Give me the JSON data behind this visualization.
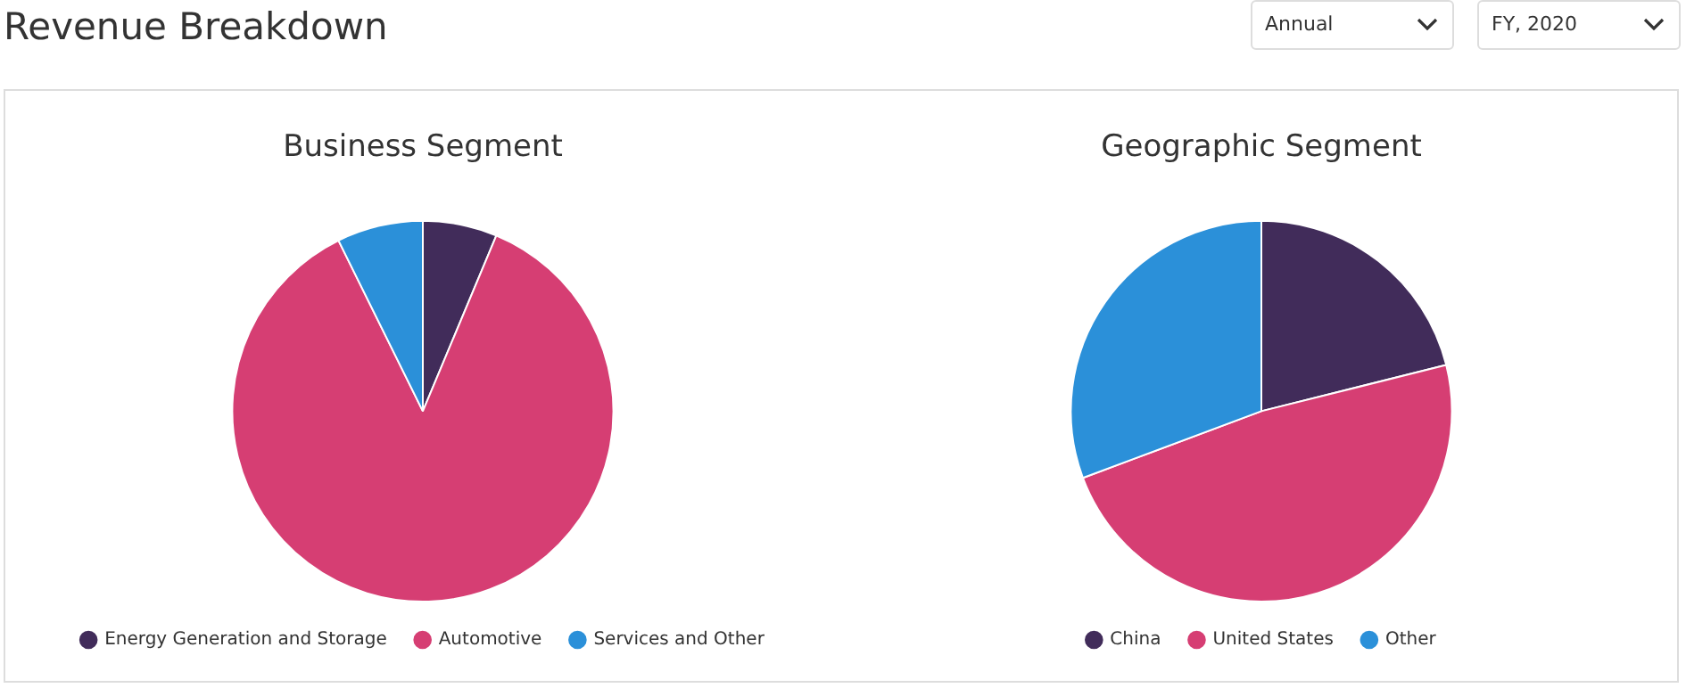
{
  "chart_data": [
    {
      "type": "other",
      "title": "Revenue Breakdown",
      "annotations": [
        "Annual",
        "FY, 2020"
      ]
    },
    {
      "type": "pie",
      "title": "Business Segment",
      "categories": [
        "Energy Generation and Storage",
        "Automotive",
        "Services and Other"
      ],
      "values": [
        6.3,
        86.4,
        7.3
      ],
      "colors": [
        "#412c5a",
        "#d63e73",
        "#2b90d9"
      ],
      "legend": "bottom"
    },
    {
      "type": "pie",
      "title": "Geographic Segment",
      "categories": [
        "China",
        "United States",
        "Other"
      ],
      "values": [
        21.1,
        48.2,
        30.7
      ],
      "colors": [
        "#412c5a",
        "#d63e73",
        "#2b90d9"
      ],
      "legend": "bottom"
    }
  ]
}
